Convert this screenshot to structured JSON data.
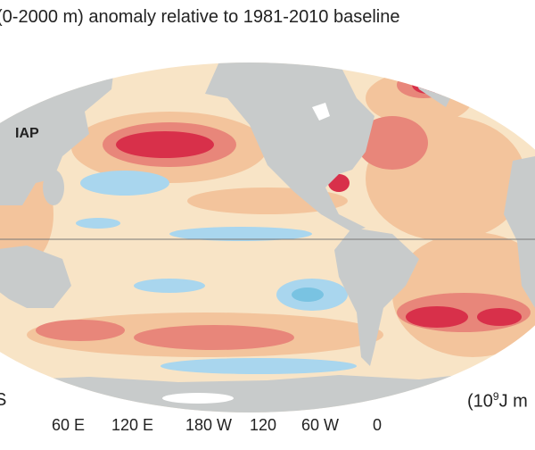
{
  "title": "(0-2000 m) anomaly relative to 1981-2010 baseline",
  "dataset_label": "IAP",
  "units_prefix": "(10",
  "units_exp": "9",
  "units_suffix": "J m",
  "edge_label": "S",
  "longitude_ticks": [
    "60 E",
    "120 E",
    "180 W",
    "120",
    "60 W",
    "0"
  ],
  "colors": {
    "land": "#c8cbcb",
    "ocean_base": "#f8e4c6",
    "warm": "#f3c49c",
    "hot": "#e8867a",
    "hottest": "#d8304a",
    "cool": "#a9d6ee",
    "cold": "#79c3e2"
  }
}
